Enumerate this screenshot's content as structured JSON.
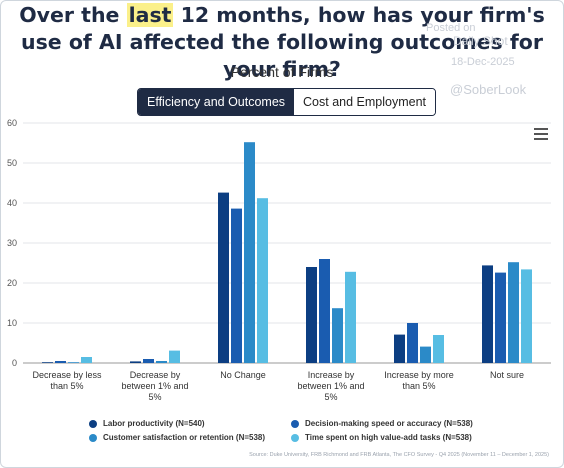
{
  "title": {
    "pre": "Over the ",
    "highlight": "last",
    "post": " 12 months, how has your firm's use of AI affected the following outcomes for your firm?"
  },
  "watermark": {
    "line1": "Posted on",
    "line2": "Daily Shot",
    "line3": "18-Dec-2025",
    "line4": "@SoberLook"
  },
  "subtitle": "Percent of Firms",
  "tabs": [
    {
      "label": "Efficiency and Outcomes",
      "active": true
    },
    {
      "label": "Cost and Employment",
      "active": false
    }
  ],
  "menu_icon": "hamburger-menu-icon",
  "source": "Source: Duke University, FRB Richmond and FRB Atlanta, The CFO Survey - Q4 2025 (November 11 – December 1, 2025)",
  "chart_data": {
    "type": "bar",
    "categories": [
      [
        "Decrease by less",
        "than 5%"
      ],
      [
        "Decrease by",
        "between 1% and",
        "5%"
      ],
      [
        "No Change"
      ],
      [
        "Increase by",
        "between 1% and",
        "5%"
      ],
      [
        "Increase by more",
        "than 5%"
      ],
      [
        "Not sure"
      ]
    ],
    "ylim": [
      0,
      60
    ],
    "yticks": [
      0,
      10,
      20,
      30,
      40,
      50,
      60
    ],
    "grid": true,
    "legend_position": "bottom",
    "series": [
      {
        "name": "Labor productivity (N=540)",
        "color": "#0c3e82",
        "values": [
          0.2,
          0.4,
          42.6,
          24.0,
          7.1,
          24.4
        ]
      },
      {
        "name": "Decision-making speed or accuracy (N=538)",
        "color": "#1a5cb0",
        "values": [
          0.5,
          1.0,
          38.6,
          26.0,
          10.0,
          22.6
        ]
      },
      {
        "name": "Customer satisfaction or retention (N=538)",
        "color": "#2b8ac8",
        "values": [
          0.2,
          0.5,
          55.2,
          13.7,
          4.1,
          25.2
        ]
      },
      {
        "name": "Time spent on high value-add tasks (N=538)",
        "color": "#57bde3",
        "values": [
          1.5,
          3.1,
          41.2,
          22.8,
          7.0,
          23.4
        ]
      }
    ]
  }
}
